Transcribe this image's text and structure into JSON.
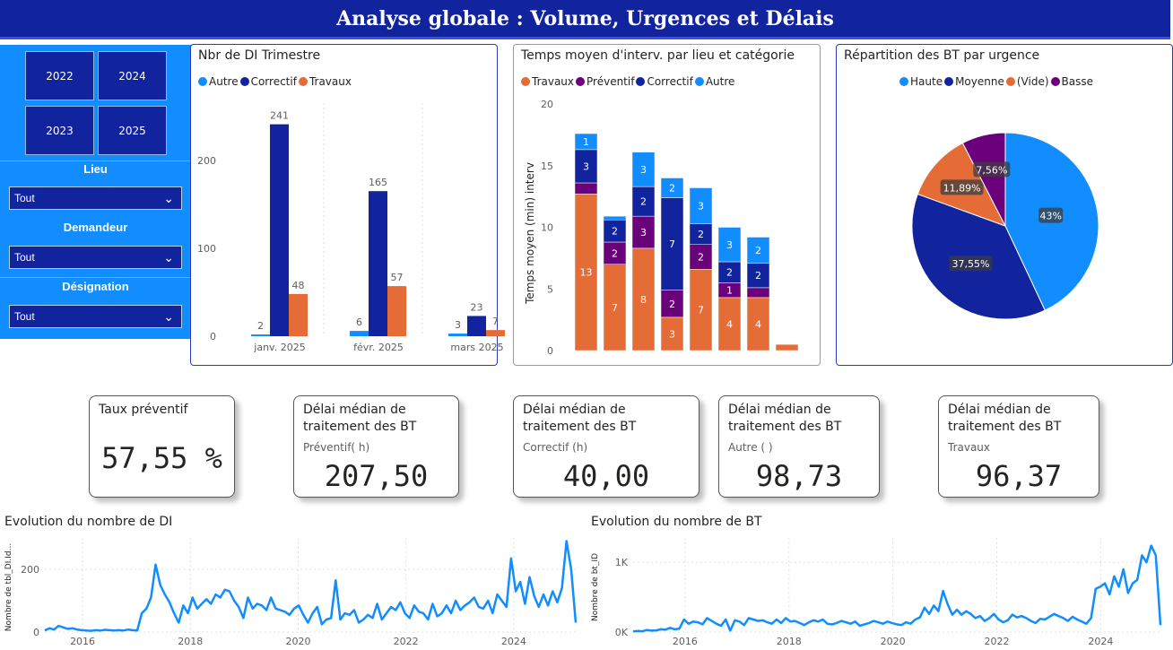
{
  "page": {
    "title": "Analyse globale : Volume, Urgences et Délais"
  },
  "colors": {
    "title_bg": "#12239e",
    "slicer_bg": "#118dff",
    "autre": "#118dff",
    "correctif": "#12239e",
    "travaux": "#e66c37",
    "preventif": "#6b007b",
    "vide": "#e66c37"
  },
  "slicers": {
    "years": [
      "2022",
      "2024",
      "2023",
      "2025"
    ],
    "lieu": {
      "label": "Lieu",
      "value": "Tout"
    },
    "demandeur": {
      "label": "Demandeur",
      "value": "Tout"
    },
    "designation": {
      "label": "Désignation",
      "value": "Tout"
    }
  },
  "chart_data": [
    {
      "id": "di_trimestre",
      "type": "bar",
      "title": "Nbr de DI Trimestre",
      "categories": [
        "janv. 2025",
        "févr. 2025",
        "mars 2025"
      ],
      "series": [
        {
          "name": "Autre",
          "values": [
            2,
            6,
            3
          ]
        },
        {
          "name": "Correctif",
          "values": [
            241,
            165,
            23
          ]
        },
        {
          "name": "Travaux",
          "values": [
            48,
            57,
            7
          ]
        }
      ],
      "ylim": [
        0,
        260
      ],
      "yticks": [
        "0",
        "100",
        "200"
      ],
      "legend": "top-left"
    },
    {
      "id": "temps_moyen",
      "type": "bar",
      "stacked": true,
      "title": "Temps moyen d'interv. par lieu et catégorie",
      "ylabel": "Temps moyen (min) interv",
      "ylim": [
        0,
        20
      ],
      "yticks": [
        "0",
        "5",
        "10",
        "15",
        "20"
      ],
      "legend": "top-left",
      "series": [
        {
          "name": "Travaux",
          "values": [
            12.7,
            7,
            8.3,
            2.7,
            6.6,
            4.3,
            4.3,
            0.5
          ],
          "labels": [
            "13",
            "7",
            "8",
            "3",
            "7",
            "4",
            "4",
            ""
          ]
        },
        {
          "name": "Préventif",
          "values": [
            0.9,
            1.8,
            2.6,
            2.2,
            2.0,
            1.2,
            0.8,
            0
          ],
          "labels": [
            "",
            "2",
            "3",
            "2",
            "2",
            "1",
            "",
            ""
          ]
        },
        {
          "name": "Correctif",
          "values": [
            2.7,
            1.8,
            2.4,
            7.5,
            1.7,
            1.7,
            2.0,
            0
          ],
          "labels": [
            "3",
            "2",
            "2",
            "7",
            "2",
            "2",
            "2",
            ""
          ]
        },
        {
          "name": "Autre",
          "values": [
            1.3,
            0.3,
            2.8,
            1.6,
            2.9,
            2.8,
            2.1,
            0
          ],
          "labels": [
            "1",
            "",
            "3",
            "2",
            "3",
            "3",
            "2",
            ""
          ]
        }
      ]
    },
    {
      "id": "bt_urgence",
      "type": "pie",
      "title": "Répartition des BT par urgence",
      "legend": "top-center",
      "categories": [
        "Haute",
        "Moyenne",
        "(Vide)",
        "Basse"
      ],
      "values": [
        43,
        37.55,
        11.89,
        7.56
      ],
      "labels": [
        "43%",
        "37,55%",
        "11,89%",
        "7,56%"
      ]
    },
    {
      "id": "evol_di",
      "type": "line",
      "title": "Evolution du nombre de DI",
      "ylabel": "Nombre de tbl_DI.Id...",
      "x_start": 2015.3,
      "x_end": 2025.15,
      "ylim": [
        0,
        300
      ],
      "yticks": [
        0,
        200
      ],
      "yticklabels": [
        "0",
        "200"
      ],
      "xticks": [
        2016,
        2018,
        2020,
        2022,
        2024
      ],
      "xticklabels": [
        "2016",
        "2018",
        "2020",
        "2022",
        "2024"
      ],
      "values": [
        5,
        12,
        8,
        20,
        15,
        10,
        12,
        8,
        6,
        5,
        4,
        6,
        5,
        7,
        6,
        5,
        6,
        5,
        8,
        6,
        5,
        60,
        75,
        110,
        215,
        150,
        120,
        95,
        60,
        30,
        85,
        60,
        110,
        75,
        90,
        105,
        90,
        120,
        110,
        135,
        130,
        100,
        80,
        45,
        110,
        75,
        90,
        85,
        70,
        110,
        75,
        70,
        65,
        55,
        75,
        85,
        55,
        30,
        60,
        80,
        25,
        40,
        45,
        165,
        40,
        60,
        55,
        70,
        30,
        40,
        55,
        45,
        90,
        40,
        60,
        80,
        70,
        95,
        60,
        45,
        85,
        65,
        60,
        40,
        90,
        50,
        60,
        85,
        60,
        100,
        70,
        85,
        95,
        110,
        80,
        75,
        100,
        60,
        120,
        100,
        80,
        235,
        130,
        160,
        90,
        175,
        115,
        80,
        120,
        85,
        130,
        95,
        140,
        290,
        200,
        30
      ]
    },
    {
      "id": "evol_bt",
      "type": "line",
      "title": "Evolution du nombre de BT",
      "ylabel": "Nombre de bt_ID",
      "x_start": 2015.0,
      "x_end": 2025.15,
      "ylim": [
        0,
        1350
      ],
      "yticks": [
        0,
        1000
      ],
      "yticklabels": [
        "0K",
        "1K"
      ],
      "xticks": [
        2016,
        2018,
        2020,
        2022,
        2024
      ],
      "xticklabels": [
        "2016",
        "2018",
        "2020",
        "2022",
        "2024"
      ],
      "values": [
        10,
        15,
        12,
        30,
        20,
        25,
        40,
        35,
        60,
        40,
        50,
        180,
        120,
        150,
        140,
        110,
        200,
        160,
        120,
        90,
        180,
        20,
        170,
        150,
        100,
        200,
        180,
        160,
        170,
        140,
        120,
        180,
        130,
        200,
        150,
        160,
        130,
        100,
        140,
        170,
        150,
        180,
        120,
        110,
        130,
        160,
        140,
        120,
        150,
        90,
        110,
        130,
        160,
        140,
        120,
        150,
        130,
        110,
        100,
        140,
        120,
        180,
        210,
        350,
        260,
        380,
        300,
        590,
        400,
        250,
        320,
        250,
        300,
        260,
        200,
        230,
        160,
        200,
        260,
        180,
        140,
        170,
        250,
        210,
        230,
        200,
        160,
        130,
        190,
        180,
        220,
        260,
        230,
        200,
        160,
        220,
        180,
        150,
        120,
        200,
        620,
        650,
        700,
        540,
        800,
        650,
        900,
        560,
        700,
        750,
        1100,
        1000,
        1240,
        1100,
        100
      ]
    }
  ],
  "kpis": [
    {
      "title": "Taux préventif",
      "sub": "",
      "value": "57,55 %"
    },
    {
      "title": "Délai médian de traitement des BT",
      "sub": "Préventif( h)",
      "value": "207,50"
    },
    {
      "title": "Délai médian de traitement des BT",
      "sub": "Correctif (h)",
      "value": "40,00"
    },
    {
      "title": "Délai médian de traitement des BT",
      "sub": "Autre ( )",
      "value": "98,73"
    },
    {
      "title": "Délai médian de traitement des BT",
      "sub": "Travaux",
      "value": "96,37"
    }
  ]
}
